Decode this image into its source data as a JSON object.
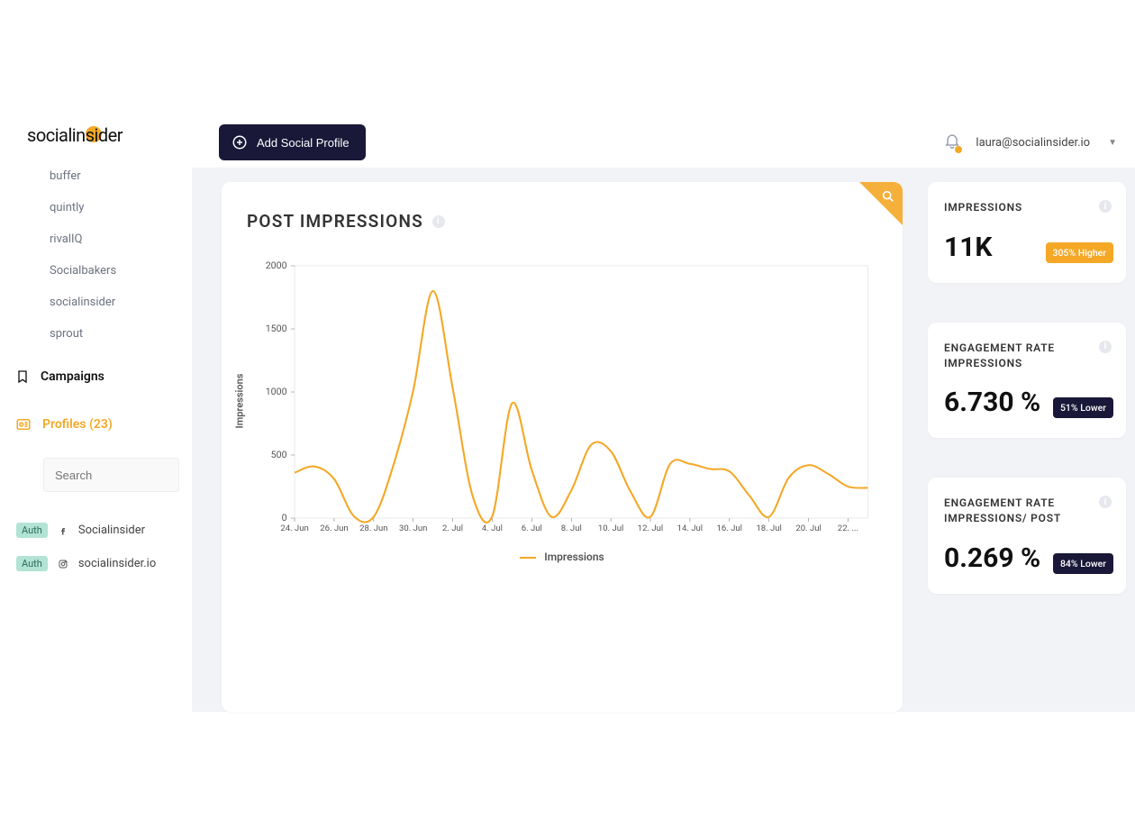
{
  "logo": {
    "text": "socialinsider"
  },
  "sidebar": {
    "items": [
      {
        "label": "buffer"
      },
      {
        "label": "quintly"
      },
      {
        "label": "rivalIQ"
      },
      {
        "label": "Socialbakers"
      },
      {
        "label": "socialinsider"
      },
      {
        "label": "sprout"
      }
    ],
    "campaigns_label": "Campaigns",
    "profiles_label": "Profiles (23)",
    "search_placeholder": "Search",
    "profile_rows": [
      {
        "auth": "Auth",
        "platform": "facebook",
        "name": "Socialinsider"
      },
      {
        "auth": "Auth",
        "platform": "instagram",
        "name": "socialinsider.io"
      }
    ]
  },
  "topbar": {
    "add_label": "Add Social Profile",
    "user_email": "laura@socialinsider.io"
  },
  "chart": {
    "title": "POST IMPRESSIONS",
    "type": "line",
    "ylabel": "Impressions",
    "legend_label": "Impressions",
    "line_color": "#f4a826",
    "line_width": 2,
    "background_color": "#ffffff",
    "border_color": "#dddddd",
    "axis_text_color": "#555555",
    "ylim": [
      0,
      2000
    ],
    "yticks": [
      0,
      500,
      1000,
      1500,
      2000
    ],
    "xticks": [
      "24. Jun",
      "26. Jun",
      "28. Jun",
      "30. Jun",
      "2. Jul",
      "4. Jul",
      "6. Jul",
      "8. Jul",
      "10. Jul",
      "12. Jul",
      "14. Jul",
      "16. Jul",
      "18. Jul",
      "20. Jul",
      "22. ..."
    ],
    "values": [
      360,
      410,
      310,
      15,
      10,
      420,
      1010,
      1800,
      1030,
      180,
      15,
      910,
      380,
      10,
      220,
      580,
      530,
      210,
      10,
      430,
      430,
      390,
      370,
      180,
      10,
      320,
      420,
      350,
      250,
      240
    ]
  },
  "metrics": [
    {
      "title": "IMPRESSIONS",
      "value": "11K",
      "badge": "305% Higher",
      "badge_style": "orange"
    },
    {
      "title": "ENGAGEMENT RATE IMPRESSIONS",
      "value": "6.730 %",
      "badge": "51% Lower",
      "badge_style": "dark"
    },
    {
      "title": "ENGAGEMENT RATE IMPRESSIONS/ POST",
      "value": "0.269 %",
      "badge": "84% Lower",
      "badge_style": "dark"
    }
  ],
  "colors": {
    "accent": "#f4a826",
    "dark": "#1a1838",
    "page_bg": "#f2f3f7",
    "card_bg": "#ffffff",
    "muted_text": "#6c7380"
  }
}
